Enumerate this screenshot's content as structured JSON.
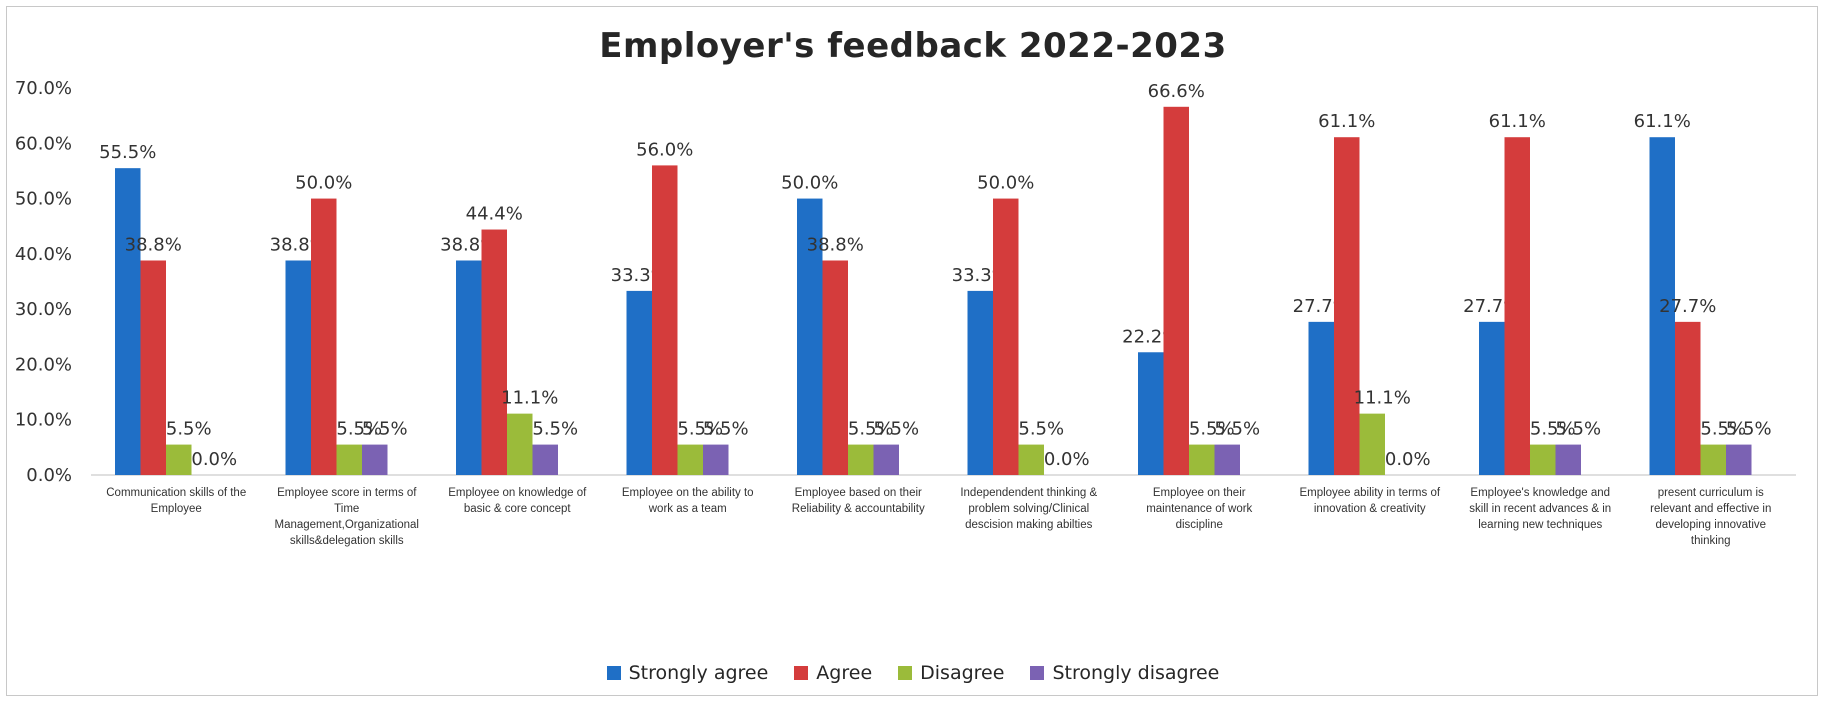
{
  "chart_data": {
    "type": "bar",
    "title": "Employer's feedback 2022-2023",
    "xlabel": "",
    "ylabel": "",
    "ylim": [
      0,
      70
    ],
    "y_ticks": [
      "0.0%",
      "10.0%",
      "20.0%",
      "30.0%",
      "40.0%",
      "50.0%",
      "60.0%",
      "70.0%"
    ],
    "grid": false,
    "legend_position": "bottom",
    "categories": [
      [
        "Communication skills of the",
        "Employee"
      ],
      [
        "Employee score in terms of",
        "Time",
        "Management,Organizational",
        "skills&delegation skills"
      ],
      [
        "Employee on  knowledge of",
        "basic & core concept"
      ],
      [
        "Employee on the ability to",
        "work as a team"
      ],
      [
        "Employee based on their",
        "Reliability & accountability"
      ],
      [
        "Independendent thinking &",
        "problem solving/Clinical",
        "descision making abilties"
      ],
      [
        "Employee on their",
        "maintenance of work",
        "discipline"
      ],
      [
        "Employee ability in terms of",
        "innovation & creativity"
      ],
      [
        "Employee's knowledge and",
        "skill in recent advances & in",
        "learning new techniques"
      ],
      [
        "present curriculum is",
        "relevant and effective in",
        "developing innovative",
        "thinking"
      ]
    ],
    "series": [
      {
        "name": "Strongly agree",
        "color": "#1f6fc6",
        "values": [
          55.5,
          38.8,
          38.8,
          33.3,
          50.0,
          33.3,
          22.2,
          27.7,
          27.7,
          61.1
        ],
        "labels": [
          "55.5%",
          "38.8%",
          "38.8%",
          "33.3%",
          "50.0%",
          "33.3%",
          "22.2%",
          "27.7%",
          "27.7%",
          "61.1%"
        ]
      },
      {
        "name": "Agree",
        "color": "#d43c3c",
        "values": [
          38.8,
          50.0,
          44.4,
          56.0,
          38.8,
          50.0,
          66.6,
          61.1,
          61.1,
          27.7
        ],
        "labels": [
          "38.8%",
          "50.0%",
          "44.4%",
          "56.0%",
          "38.8%",
          "50.0%",
          "66.6%",
          "61.1%",
          "61.1%",
          "27.7%"
        ]
      },
      {
        "name": "Disagree",
        "color": "#9bbb3a",
        "values": [
          5.5,
          5.5,
          11.1,
          5.5,
          5.5,
          5.5,
          5.5,
          11.1,
          5.5,
          5.5
        ],
        "labels": [
          "5.5%",
          "5.5%",
          "11.1%",
          "5.5%",
          "5.5%",
          "5.5%",
          "5.5%",
          "11.1%",
          "5.5%",
          "5.5%"
        ]
      },
      {
        "name": "Strongly disagree",
        "color": "#7b62b3",
        "values": [
          0.0,
          5.5,
          5.5,
          5.5,
          5.5,
          0.0,
          5.5,
          0.0,
          5.5,
          5.5
        ],
        "labels": [
          "0.0%",
          "5.5%",
          "5.5%",
          "5.5%",
          "5.5%",
          "0.0%",
          "5.5%",
          "0.0%",
          "5.5%",
          "5.5%"
        ]
      }
    ]
  }
}
